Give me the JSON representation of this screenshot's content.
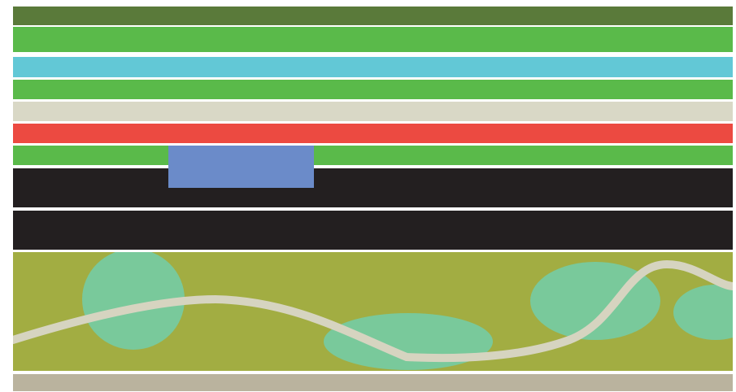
{
  "scene": {
    "lanes": [
      {
        "kind": "grass-dark",
        "color": "#5a7a3a"
      },
      {
        "kind": "grass",
        "color": "#5aba4a"
      },
      {
        "kind": "water",
        "color": "#62c8d6"
      },
      {
        "kind": "grass",
        "color": "#5aba4a"
      },
      {
        "kind": "sidewalk",
        "color": "#d9d8c6"
      },
      {
        "kind": "danger-lane",
        "color": "#ec4a41"
      },
      {
        "kind": "grass",
        "color": "#5aba4a"
      },
      {
        "kind": "road",
        "color": "#231f20"
      },
      {
        "kind": "road",
        "color": "#231f20"
      },
      {
        "kind": "field",
        "color": "#a2ad42"
      },
      {
        "kind": "path-strip",
        "color": "#bab39e"
      }
    ],
    "player_block": {
      "color": "#6b8bc9"
    },
    "pond_color": "#79c99b",
    "trail_color": "#d6d4c0"
  }
}
